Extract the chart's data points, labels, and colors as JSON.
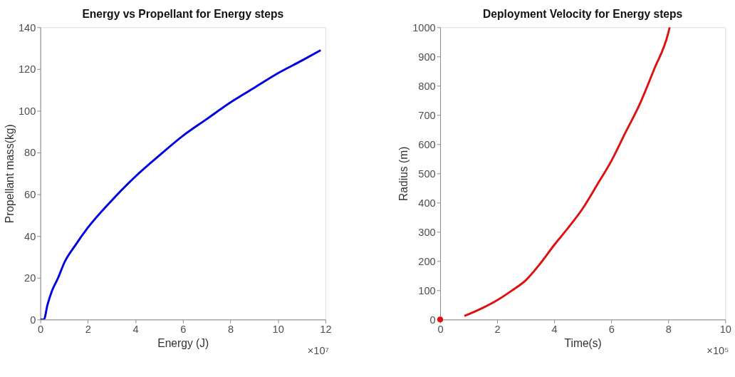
{
  "chart_data": [
    {
      "type": "line",
      "title": "Energy vs Propellant for Energy steps",
      "xlabel": "Energy (J)",
      "ylabel": "Propellant mass(kg)",
      "xlim": [
        0,
        12
      ],
      "xticks": [
        0,
        2,
        4,
        6,
        8,
        10,
        12
      ],
      "ylim": [
        0,
        140
      ],
      "yticks": [
        0,
        20,
        40,
        60,
        80,
        100,
        120,
        140
      ],
      "grid": false,
      "annotations": [
        "×10⁷"
      ],
      "series": [
        {
          "color": "#0000e0",
          "x": [
            0,
            0.15,
            0.3,
            0.5,
            0.75,
            1,
            1.5,
            2,
            3,
            4,
            5,
            6,
            7,
            8,
            9,
            10,
            11,
            11.8
          ],
          "values": [
            0,
            0,
            7,
            14,
            20,
            27,
            36,
            44,
            57,
            68.5,
            78.5,
            88,
            96,
            104,
            111,
            118,
            124,
            129
          ]
        }
      ]
    },
    {
      "type": "line",
      "title": "Deployment Velocity for Energy steps",
      "xlabel": "Time(s)",
      "ylabel": "Radius (m)",
      "xlim": [
        0,
        10
      ],
      "xticks": [
        0,
        2,
        4,
        6,
        8,
        10
      ],
      "ylim": [
        0,
        1000
      ],
      "yticks": [
        0,
        100,
        200,
        300,
        400,
        500,
        600,
        700,
        800,
        900,
        1000
      ],
      "grid": false,
      "annotations": [
        "×10⁵"
      ],
      "series": [
        {
          "color": "#e01010",
          "x": [
            0.85,
            1,
            1.5,
            2,
            2.5,
            3,
            3.5,
            4,
            4.5,
            5,
            5.5,
            6,
            6.5,
            7,
            7.5,
            8,
            8.05
          ],
          "values": [
            12,
            18,
            40,
            66,
            98,
            134,
            190,
            255,
            315,
            380,
            460,
            542,
            640,
            737,
            855,
            980,
            1000
          ]
        },
        {
          "type": "scatter",
          "color": "#e01010",
          "marker": "circle",
          "x": [
            0
          ],
          "values": [
            0
          ]
        }
      ]
    }
  ]
}
